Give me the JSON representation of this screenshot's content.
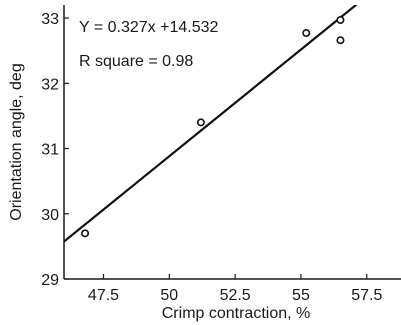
{
  "chart_data": {
    "type": "scatter",
    "title": "",
    "xlabel": "Crimp contraction, %",
    "ylabel": "Orientation angle, deg",
    "xlim": [
      46.0,
      58.8
    ],
    "ylim": [
      29,
      33.2
    ],
    "xticks": [
      47.5,
      50,
      52.5,
      55,
      57.5
    ],
    "xtick_labels": [
      "47.5",
      "50",
      "52.5",
      "55",
      "57.5"
    ],
    "yticks": [
      29,
      30,
      31,
      32,
      33
    ],
    "ytick_labels": [
      "29",
      "30",
      "31",
      "32",
      "33"
    ],
    "grid": false,
    "points": [
      {
        "x": 46.8,
        "y": 29.7
      },
      {
        "x": 51.2,
        "y": 31.4
      },
      {
        "x": 55.2,
        "y": 32.77
      },
      {
        "x": 56.5,
        "y": 32.97
      },
      {
        "x": 56.5,
        "y": 32.66
      }
    ],
    "fit_line": {
      "slope": 0.327,
      "intercept": 14.532
    },
    "annotations": [
      "Y = 0.327x +14.532",
      "R square = 0.98"
    ]
  }
}
